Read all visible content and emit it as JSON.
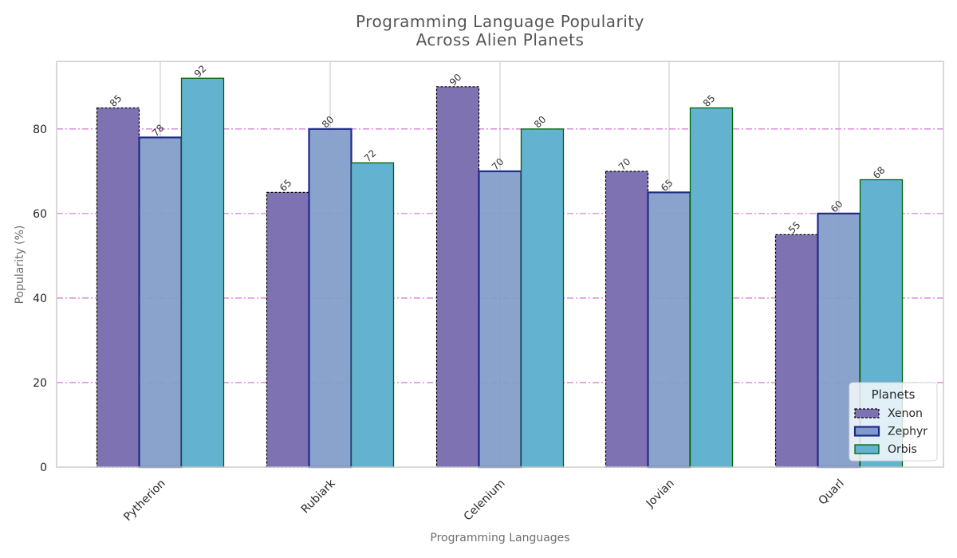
{
  "chart_data": {
    "type": "bar",
    "title_lines": [
      "Programming Language Popularity",
      "Across Alien Planets"
    ],
    "xlabel": "Programming Languages",
    "ylabel": "Popularity (%)",
    "categories": [
      "Pytherion",
      "Rubiark",
      "Celenium",
      "Jovian",
      "Quarl"
    ],
    "series": [
      {
        "name": "Xenon",
        "values": [
          85,
          65,
          90,
          70,
          55
        ],
        "color": "#7f72b3",
        "edge": "#000000",
        "edge_style": "dashed"
      },
      {
        "name": "Zephyr",
        "values": [
          78,
          80,
          70,
          65,
          60
        ],
        "color": "#7f9bc8",
        "edge": "#1f2a8a",
        "edge_style": "solid-thick"
      },
      {
        "name": "Orbis",
        "values": [
          92,
          72,
          80,
          85,
          68
        ],
        "color": "#63b3d0",
        "edge": "#006400",
        "edge_style": "solid"
      }
    ],
    "ylim": [
      0,
      96
    ],
    "yticks": [
      0,
      20,
      40,
      60,
      80
    ],
    "grid": {
      "y": true,
      "y_color": "#cc66cc",
      "y_style": "dash-dot",
      "x": true
    },
    "legend": {
      "title": "Planets",
      "placement": "bottom-right"
    },
    "data_labels": true
  }
}
